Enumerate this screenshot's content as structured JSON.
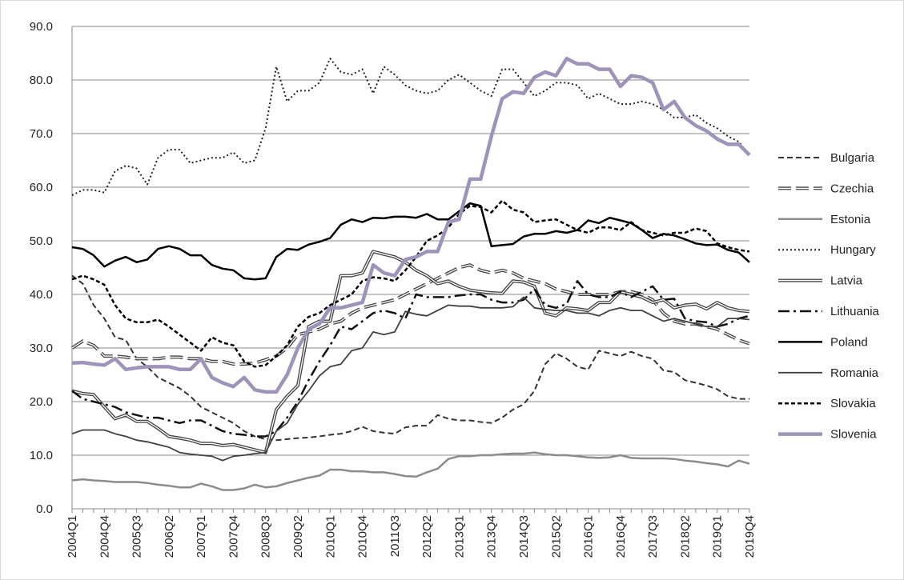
{
  "chart_data": {
    "type": "line",
    "categories": [
      "2004Q1",
      null,
      null,
      "2004Q4",
      null,
      null,
      "2005Q3",
      null,
      null,
      "2006Q2",
      null,
      null,
      "2007Q1",
      null,
      null,
      "2007Q4",
      null,
      null,
      "2008Q3",
      null,
      null,
      "2009Q2",
      null,
      null,
      "2010Q1",
      null,
      null,
      "2010Q4",
      null,
      null,
      "2011Q3",
      null,
      null,
      "2012Q2",
      null,
      null,
      "2013Q1",
      null,
      null,
      "2013Q4",
      null,
      null,
      "2014Q3",
      null,
      null,
      "2015Q2",
      null,
      null,
      "2016Q1",
      null,
      null,
      "2016Q4",
      null,
      null,
      "2017Q3",
      null,
      null,
      "2018Q2",
      null,
      null,
      "2019Q1",
      null,
      null,
      "2019Q4"
    ],
    "ylim": [
      0,
      90
    ],
    "yticks": [
      {
        "value": 0,
        "label": "0.0"
      },
      {
        "value": 10,
        "label": "10.0"
      },
      {
        "value": 20,
        "label": "20.0"
      },
      {
        "value": 30,
        "label": "30.0"
      },
      {
        "value": 40,
        "label": "40.0"
      },
      {
        "value": 50,
        "label": "50.0"
      },
      {
        "value": 60,
        "label": "60.0"
      },
      {
        "value": 70,
        "label": "70.0"
      },
      {
        "value": 80,
        "label": "80.0"
      },
      {
        "value": 90,
        "label": "90.0"
      }
    ],
    "grid": true,
    "legend": "right",
    "series": [
      {
        "name": "Bulgaria",
        "color": "#333333",
        "dash": "7,4",
        "width": 2,
        "values": [
          43.5,
          42,
          38,
          35.5,
          32,
          31.5,
          28,
          26.5,
          24.5,
          23.5,
          22.5,
          21,
          19,
          18,
          17,
          16,
          14.5,
          13.5,
          13,
          12.8,
          13,
          13.2,
          13.3,
          13.5,
          13.8,
          14,
          14.5,
          15.3,
          14.5,
          14.2,
          14,
          15.2,
          15.5,
          15.5,
          17.5,
          16.8,
          16.5,
          16.5,
          16.2,
          16,
          17,
          18.5,
          19.5,
          22,
          27,
          29,
          28,
          26.5,
          26,
          29.5,
          29,
          28.5,
          29.3,
          28.5,
          28,
          25.8,
          25.5,
          24,
          23.5,
          23,
          22.3,
          21,
          20.5,
          20.5
        ]
      },
      {
        "name": "Czechia",
        "color": "#444444",
        "dash": "16,6",
        "width": 4,
        "double": true,
        "values": [
          30,
          31.3,
          30.5,
          28.5,
          28.5,
          28.3,
          28,
          28,
          28,
          28.3,
          28.3,
          28,
          28,
          27.5,
          27.5,
          27,
          27,
          27.2,
          27.8,
          28.5,
          30,
          32.5,
          33,
          33.5,
          34.5,
          35,
          36.5,
          37.5,
          38,
          38.5,
          39,
          40,
          41,
          42,
          43,
          44,
          45,
          45.5,
          44.5,
          44,
          44.5,
          44,
          43,
          42.5,
          42,
          41,
          40.5,
          40,
          40,
          40,
          40,
          40.5,
          40.5,
          40,
          39,
          36.5,
          35,
          34.5,
          34.5,
          34,
          33.5,
          32.5,
          31.5,
          30.8
        ]
      },
      {
        "name": "Estonia",
        "color": "#8c8c8c",
        "width": 2.5,
        "values": [
          5.3,
          5.5,
          5.3,
          5.2,
          5,
          5,
          5,
          4.8,
          4.5,
          4.3,
          4,
          4,
          4.7,
          4.2,
          3.5,
          3.5,
          3.8,
          4.5,
          4,
          4.2,
          4.8,
          5.3,
          5.8,
          6.2,
          7.3,
          7.3,
          7,
          7,
          6.8,
          6.8,
          6.5,
          6.1,
          6,
          6.8,
          7.5,
          9.3,
          9.8,
          9.8,
          10,
          10,
          10.2,
          10.3,
          10.3,
          10.5,
          10.2,
          10,
          10,
          9.8,
          9.6,
          9.5,
          9.6,
          10,
          9.5,
          9.4,
          9.4,
          9.4,
          9.3,
          9,
          8.8,
          8.5,
          8.3,
          7.9,
          9,
          8.4
        ]
      },
      {
        "name": "Hungary",
        "color": "#222222",
        "dash": "2,3",
        "width": 2,
        "values": [
          58.5,
          59.5,
          59.5,
          59,
          63,
          64,
          63.5,
          60.5,
          65.5,
          67,
          67,
          64.5,
          65,
          65.5,
          65.5,
          66.5,
          64.5,
          65,
          71,
          82.5,
          76,
          78,
          78,
          79.5,
          84,
          81.5,
          81,
          82,
          77.5,
          82.5,
          81,
          79,
          78,
          77.5,
          78,
          80,
          81,
          79.5,
          78,
          77,
          82,
          82,
          79.5,
          77,
          78,
          79.5,
          79.5,
          79,
          76.5,
          77.5,
          76.5,
          75.5,
          75.5,
          76,
          75.5,
          74.5,
          73,
          73,
          73.5,
          72,
          71,
          69.5,
          68.5,
          66
        ]
      },
      {
        "name": "Latvia",
        "color": "#444444",
        "width": 4,
        "double": true,
        "values": [
          22,
          21.5,
          21.3,
          19,
          16.8,
          17.5,
          16.3,
          16.3,
          15,
          13.5,
          13.2,
          12.8,
          12.2,
          12.2,
          11.8,
          12,
          11.5,
          11,
          10.5,
          18.5,
          21,
          23,
          34,
          35,
          35,
          43.5,
          43.5,
          44,
          48,
          47.5,
          47,
          46,
          44.5,
          43.5,
          42,
          42.5,
          41.5,
          40.8,
          40.5,
          40.3,
          40.2,
          42.5,
          42.3,
          41.5,
          36.5,
          36,
          37.5,
          37.3,
          37,
          38.5,
          38.5,
          40.5,
          40,
          39.5,
          38.5,
          39,
          37.5,
          38,
          38.2,
          37.3,
          38.5,
          37.5,
          37,
          36.8
        ]
      },
      {
        "name": "Lithuania",
        "color": "#111111",
        "dash": "14,5,3,5",
        "width": 2.5,
        "values": [
          22,
          20.5,
          20,
          19.5,
          19,
          18,
          17.5,
          17,
          17,
          16.5,
          16,
          16.5,
          16.5,
          15.5,
          14.5,
          14,
          13.8,
          13.5,
          13.5,
          14.5,
          17,
          20,
          24,
          27.5,
          30.5,
          34,
          33.5,
          35,
          36.5,
          37,
          36.5,
          35.5,
          40,
          39.5,
          39.5,
          39.5,
          39.8,
          40,
          40,
          39,
          38.5,
          38.5,
          39,
          41,
          38,
          37.5,
          38.2,
          42.5,
          40,
          39.5,
          39.5,
          40.5,
          39.5,
          40.5,
          41.5,
          39,
          39.2,
          35.5,
          35,
          34.8,
          34,
          34.5,
          35.5,
          36
        ]
      },
      {
        "name": "Poland",
        "color": "#000000",
        "width": 2.5,
        "values": [
          48.8,
          48.5,
          47.3,
          45.2,
          46.3,
          47,
          46,
          46.5,
          48.5,
          49,
          48.5,
          47.3,
          47.3,
          45.5,
          44.8,
          44.5,
          43,
          42.8,
          43,
          47,
          48.5,
          48.3,
          49.3,
          49.8,
          50.5,
          53,
          54,
          53.5,
          54.3,
          54.2,
          54.5,
          54.5,
          54.3,
          55,
          54,
          54,
          55.5,
          57,
          56.5,
          49,
          49.2,
          49.4,
          50.8,
          51.3,
          51.3,
          51.8,
          51.5,
          52,
          53.8,
          53.3,
          54.3,
          53.8,
          53.3,
          52,
          50.5,
          51.3,
          51,
          50.3,
          49.5,
          49.2,
          49.3,
          48.3,
          47.8,
          46
        ]
      },
      {
        "name": "Romania",
        "color": "#404040",
        "width": 1.8,
        "values": [
          14,
          14.7,
          14.7,
          14.7,
          14,
          13.5,
          12.8,
          12.5,
          12,
          11.5,
          10.5,
          10.2,
          10,
          9.8,
          9,
          9.8,
          10,
          10.3,
          10.5,
          14.5,
          16,
          19.5,
          22,
          24.8,
          26.5,
          27,
          29.5,
          30,
          33,
          32.5,
          33,
          36.8,
          36.3,
          36,
          37,
          38,
          37.8,
          37.8,
          37.5,
          37.5,
          37.5,
          37.7,
          39.5,
          37.5,
          37.2,
          37,
          37,
          36.5,
          36.5,
          36,
          37,
          37.5,
          37,
          37,
          36,
          35,
          35.5,
          35,
          34.5,
          34,
          34,
          35.5,
          35.5,
          35.3
        ]
      },
      {
        "name": "Slovakia",
        "color": "#000000",
        "dash": "5,3",
        "width": 2.5,
        "values": [
          42.8,
          43.5,
          42.8,
          41.8,
          38,
          35.5,
          34.8,
          34.8,
          35.3,
          34,
          32.5,
          31,
          29.5,
          32,
          31,
          30.5,
          27.5,
          26.5,
          26.8,
          28.5,
          30.5,
          34,
          35.8,
          36.5,
          38,
          39,
          40,
          42.5,
          43.2,
          43,
          42.5,
          44.5,
          47,
          50,
          51,
          52.5,
          55,
          56.5,
          56.3,
          55.3,
          57.5,
          55.8,
          55.3,
          53.5,
          53.8,
          54,
          53,
          52,
          51.5,
          52.5,
          52.5,
          52,
          53.5,
          52,
          51.5,
          51,
          51.5,
          51.5,
          52.3,
          51.8,
          49.5,
          48.8,
          48.3,
          48
        ]
      },
      {
        "name": "Slovenia",
        "color": "#9e93b8",
        "width": 4.5,
        "values": [
          27.2,
          27.3,
          27,
          26.8,
          28,
          26,
          26.3,
          26.5,
          26.5,
          26.5,
          26,
          26,
          28,
          24.5,
          23.5,
          22.8,
          24.5,
          22.2,
          21.8,
          21.8,
          25,
          30,
          33.5,
          34.5,
          37.5,
          37.5,
          38,
          38.5,
          45.5,
          44,
          43.5,
          46.5,
          47,
          48,
          48,
          53.5,
          54,
          61.5,
          61.5,
          69.5,
          76.5,
          77.8,
          77.5,
          80.5,
          81.5,
          80.8,
          84,
          83,
          83,
          82,
          82,
          78.8,
          80.8,
          80.5,
          79.5,
          74.5,
          76,
          73,
          71.5,
          70.5,
          69,
          68,
          68,
          66
        ]
      }
    ]
  }
}
